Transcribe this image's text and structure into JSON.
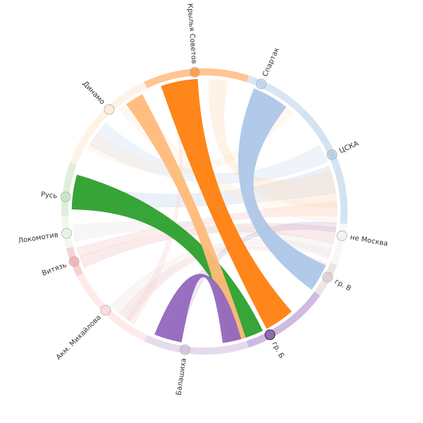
{
  "diagram": {
    "type": "chord",
    "nodes": [
      {
        "id": "krylia",
        "label": "Крылья Советов",
        "color": "#ff7f0e",
        "selected": false
      },
      {
        "id": "spartak",
        "label": "Спартак",
        "color": "#aec7e8",
        "selected": false
      },
      {
        "id": "cska",
        "label": "ЦСКА",
        "color": "#9ec2e1",
        "selected": false
      },
      {
        "id": "nemoskva",
        "label": "не Москва",
        "color": "#eeeeee",
        "selected": false
      },
      {
        "id": "grv",
        "label": "гр. В",
        "color": "#d7c3c3",
        "selected": false
      },
      {
        "id": "grb",
        "label": "гр. Б",
        "color": "#9467bd",
        "selected": true
      },
      {
        "id": "balashikha",
        "label": "Балашиха",
        "color": "#c5b0d5",
        "selected": false
      },
      {
        "id": "mikhailova",
        "label": "Акм. Михайлова",
        "color": "#ffd0d0",
        "selected": false
      },
      {
        "id": "vityaz",
        "label": "Витязь",
        "color": "#ef9a9a",
        "selected": false
      },
      {
        "id": "lokomotiv",
        "label": "Локомотив",
        "color": "#dff0d8",
        "selected": false
      },
      {
        "id": "rus",
        "label": "Русь",
        "color": "#b6dcb0",
        "selected": false
      },
      {
        "id": "dinamo",
        "label": "Динамо",
        "color": "#ffe4c8",
        "selected": false
      }
    ],
    "ribbons": [
      {
        "source": "krylia",
        "target": "grb",
        "color": "#ff7f0e",
        "opacity": 0.95
      },
      {
        "source": "spartak",
        "target": "grv",
        "color": "#aec7e8",
        "opacity": 0.95
      },
      {
        "source": "rus",
        "target": "grb",
        "color": "#2ca02c",
        "opacity": 0.95
      },
      {
        "source": "dinamo",
        "target": "grb",
        "color": "#ffbb78",
        "opacity": 0.95
      },
      {
        "source": "balashikha",
        "target": "grb",
        "color": "#9467bd",
        "opacity": 0.95
      },
      {
        "source": "cska",
        "target": "rus",
        "color": "#aec7e8",
        "opacity": 0.25
      },
      {
        "source": "cska",
        "target": "dinamo",
        "color": "#aec7e8",
        "opacity": 0.2
      },
      {
        "source": "krylia",
        "target": "cska",
        "color": "#ffd8b0",
        "opacity": 0.3
      },
      {
        "source": "dinamo",
        "target": "cska",
        "color": "#ffe8d0",
        "opacity": 0.3
      },
      {
        "source": "nemoskva",
        "target": "vityaz",
        "color": "#f2b8b8",
        "opacity": 0.3
      },
      {
        "source": "cska",
        "target": "vityaz",
        "color": "#f2b8b8",
        "opacity": 0.25
      },
      {
        "source": "nemoskva",
        "target": "lokomotiv",
        "color": "#e8e0e0",
        "opacity": 0.3
      },
      {
        "source": "nemoskva",
        "target": "mikhailova",
        "color": "#f0e0e0",
        "opacity": 0.3
      },
      {
        "source": "grv",
        "target": "mikhailova",
        "color": "#f4d0d0",
        "opacity": 0.3
      },
      {
        "source": "krylia",
        "target": "mikhailova",
        "color": "#f8d0d0",
        "opacity": 0.3
      },
      {
        "source": "nemoskva",
        "target": "balashikha",
        "color": "#c5b0d5",
        "opacity": 0.3
      },
      {
        "source": "spartak",
        "target": "dinamo",
        "color": "#ffe4c8",
        "opacity": 0.25
      }
    ]
  }
}
